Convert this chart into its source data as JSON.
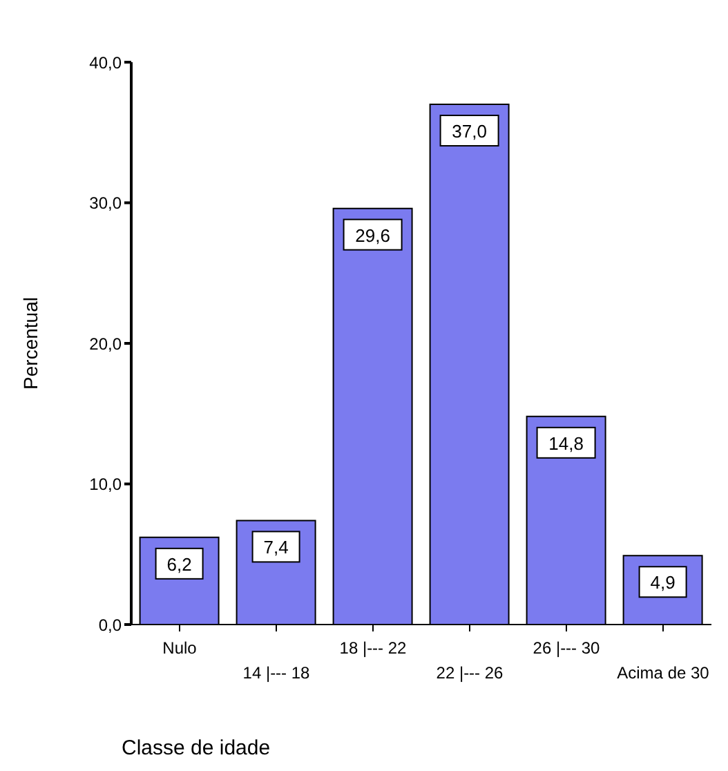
{
  "chart_data": {
    "type": "bar",
    "xlabel": "Classe de idade",
    "ylabel": "Percentual",
    "categories": [
      "Nulo",
      "14 |--- 18",
      "18 |--- 22",
      "22 |--- 26",
      "26 |--- 30",
      "Acima de 30"
    ],
    "values": [
      6.2,
      7.4,
      29.6,
      37.0,
      14.8,
      4.9
    ],
    "value_labels": [
      "6,2",
      "7,4",
      "29,6",
      "37,0",
      "14,8",
      "4,9"
    ],
    "color": "#7b7bef",
    "ylim": [
      0,
      40
    ],
    "yticks": [
      {
        "value": 0,
        "label": "0,0"
      },
      {
        "value": 10,
        "label": "10,0"
      },
      {
        "value": 20,
        "label": "20,0"
      },
      {
        "value": 30,
        "label": "30,0"
      },
      {
        "value": 40,
        "label": "40,0"
      }
    ],
    "grid": false,
    "legend": false
  }
}
